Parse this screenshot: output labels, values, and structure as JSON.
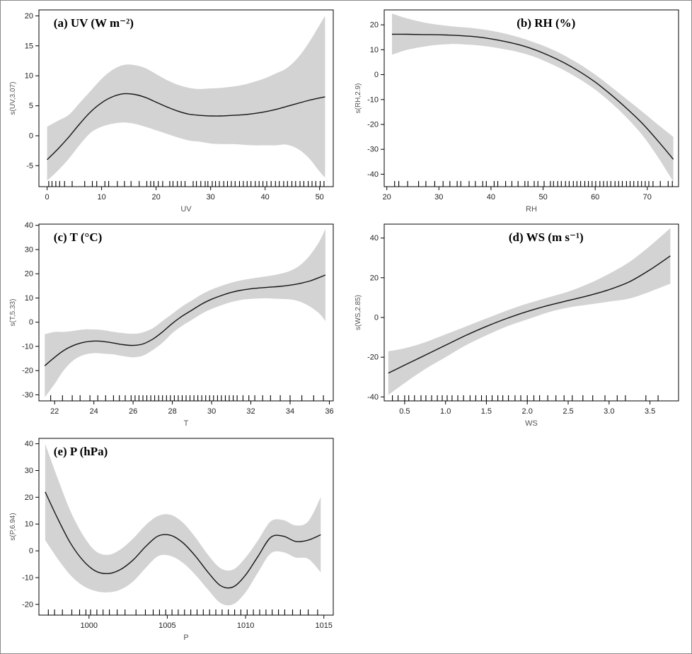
{
  "figure": {
    "background": "#ffffff",
    "border_color": "#8a8a8a",
    "band_color": "#d3d3d3",
    "line_color": "#141414",
    "axis_color": "#000000",
    "tick_label_color": "#222222",
    "axis_label_color": "#555555"
  },
  "chart_data": [
    {
      "id": "a",
      "type": "line",
      "title": "(a)  UV (W m⁻²)",
      "title_align": "left",
      "xlabel": "UV",
      "ylabel": "s(UV,3.07)",
      "xlim": [
        -1.5,
        52.5
      ],
      "ylim": [
        -8.5,
        21
      ],
      "xticks": [
        0,
        10,
        20,
        30,
        40,
        50
      ],
      "xtick_labels": [
        "0",
        "10",
        "20",
        "30",
        "40",
        "50"
      ],
      "yticks": [
        -5,
        0,
        5,
        10,
        15,
        20
      ],
      "ytick_labels": [
        "-5",
        "0",
        "5",
        "10",
        "15",
        "20"
      ],
      "x": [
        0,
        2,
        4,
        6,
        8,
        10,
        12,
        14,
        16,
        18,
        20,
        22,
        24,
        26,
        28,
        30,
        32,
        34,
        36,
        38,
        40,
        42,
        44,
        46,
        48,
        50,
        51
      ],
      "fit": [
        -4,
        -2.2,
        -0.2,
        2,
        4,
        5.5,
        6.5,
        7,
        6.9,
        6.4,
        5.6,
        4.8,
        4.1,
        3.6,
        3.4,
        3.3,
        3.3,
        3.4,
        3.5,
        3.7,
        4,
        4.4,
        4.9,
        5.4,
        5.9,
        6.3,
        6.5
      ],
      "upper": [
        1.5,
        2.5,
        3.5,
        5.5,
        7.5,
        9.5,
        11,
        11.8,
        11.8,
        11.3,
        10.3,
        9.3,
        8.5,
        8,
        7.8,
        7.9,
        8,
        8.2,
        8.5,
        9,
        9.6,
        10.4,
        11.3,
        13,
        15.5,
        18.5,
        20
      ],
      "lower": [
        -7.5,
        -5.8,
        -3.8,
        -1.5,
        0.5,
        1.5,
        2,
        2.2,
        2,
        1.5,
        0.9,
        0.3,
        -0.3,
        -0.8,
        -1,
        -1.3,
        -1.4,
        -1.4,
        -1.5,
        -1.6,
        -1.6,
        -1.6,
        -1.5,
        -2.2,
        -3.7,
        -6,
        -7
      ],
      "rug": [
        0.3,
        0.9,
        1.6,
        2.3,
        3.2,
        4.6,
        6.9,
        8.3,
        9.1,
        10.6,
        11.3,
        12.9,
        14.2,
        15.4,
        16.9,
        18.3,
        19,
        19.6,
        20.4,
        21.2,
        22.5,
        23.1,
        23.9,
        24.6,
        25.3,
        26.8,
        27.4,
        28.2,
        29,
        29.5,
        30.3,
        30.9,
        31.6,
        32.4,
        33.1,
        33.8,
        34.5,
        35.3,
        36,
        36.7,
        37.4,
        38.2,
        38.9,
        39.6,
        40.3,
        41.1,
        41.9,
        42.6,
        43.4,
        44.1,
        44.9,
        45.6,
        46.4,
        47.1,
        47.9,
        48.6,
        49.3,
        50.1,
        50.8
      ]
    },
    {
      "id": "b",
      "type": "line",
      "title": "(b)  RH (%)",
      "title_align": "center",
      "xlabel": "RH",
      "ylabel": "s(RH,2.9)",
      "xlim": [
        19.5,
        76
      ],
      "ylim": [
        -45,
        26
      ],
      "xticks": [
        20,
        30,
        40,
        50,
        60,
        70
      ],
      "xtick_labels": [
        "20",
        "30",
        "40",
        "50",
        "60",
        "70"
      ],
      "yticks": [
        -40,
        -30,
        -20,
        -10,
        0,
        10,
        20
      ],
      "ytick_labels": [
        "-40",
        "-30",
        "-20",
        "-10",
        "0",
        "10",
        "20"
      ],
      "x": [
        21,
        24,
        27,
        30,
        33,
        36,
        39,
        42,
        45,
        48,
        51,
        54,
        57,
        60,
        63,
        66,
        69,
        72,
        75
      ],
      "fit": [
        16.2,
        16.2,
        16.1,
        16,
        15.8,
        15.4,
        14.7,
        13.6,
        12.2,
        10.3,
        7.8,
        4.8,
        1.2,
        -3,
        -8,
        -13.5,
        -19.5,
        -26.5,
        -34
      ],
      "upper": [
        24.5,
        22.5,
        21,
        20,
        19.3,
        18.8,
        18,
        16.8,
        15.2,
        13.2,
        10.8,
        7.8,
        4.2,
        0,
        -4.8,
        -9.8,
        -14.8,
        -20,
        -25
      ],
      "lower": [
        8,
        10,
        11.2,
        12,
        12.3,
        12,
        11.4,
        10.4,
        9.2,
        7.4,
        4.8,
        1.8,
        -1.8,
        -6,
        -11.2,
        -17.2,
        -24.2,
        -33,
        -43
      ],
      "rug": [
        21.5,
        22.3,
        24,
        26.1,
        27.5,
        29.2,
        30.8,
        32.1,
        33.5,
        34.2,
        35.8,
        37,
        38.4,
        39.1,
        40.6,
        41.3,
        42.8,
        44,
        45.2,
        46.5,
        47.1,
        48.3,
        49,
        50.2,
        51.4,
        52,
        52.8,
        53.5,
        54.3,
        55,
        55.8,
        56.5,
        57.2,
        58,
        58.7,
        59.4,
        60.1,
        60.9,
        61.6,
        62.3,
        63,
        63.8,
        64.5,
        65.2,
        66,
        66.7,
        67.4,
        68.2,
        68.9,
        69.6,
        70.3,
        71.1,
        72.5,
        74,
        74.8
      ]
    },
    {
      "id": "c",
      "type": "line",
      "title": "(c)  T (°C)",
      "title_align": "left",
      "xlabel": "T",
      "ylabel": "s(T,5.33)",
      "xlim": [
        21.2,
        36.2
      ],
      "ylim": [
        -32.5,
        40.5
      ],
      "xticks": [
        22,
        24,
        26,
        28,
        30,
        32,
        34,
        36
      ],
      "xtick_labels": [
        "22",
        "24",
        "26",
        "28",
        "30",
        "32",
        "34",
        "36"
      ],
      "yticks": [
        -30,
        -20,
        -10,
        0,
        10,
        20,
        30,
        40
      ],
      "ytick_labels": [
        "-30",
        "-20",
        "-10",
        "0",
        "10",
        "20",
        "30",
        "40"
      ],
      "x": [
        21.5,
        22,
        22.5,
        23,
        23.5,
        24,
        24.5,
        25,
        25.5,
        26,
        26.5,
        27,
        27.5,
        28,
        28.5,
        29,
        29.5,
        30,
        30.5,
        31,
        31.5,
        32,
        32.5,
        33,
        33.5,
        34,
        34.5,
        35,
        35.5,
        35.8
      ],
      "fit": [
        -18,
        -14.5,
        -11.5,
        -9.5,
        -8.3,
        -7.8,
        -8,
        -8.6,
        -9.3,
        -9.6,
        -9,
        -7,
        -4,
        -0.5,
        2.5,
        5,
        7.5,
        9.5,
        11,
        12.3,
        13.2,
        13.8,
        14.2,
        14.5,
        14.8,
        15.3,
        16,
        17,
        18.5,
        19.5
      ],
      "upper": [
        -5,
        -4,
        -4,
        -3.5,
        -3,
        -3,
        -3.3,
        -4,
        -4.5,
        -4.8,
        -4.2,
        -2.5,
        0.5,
        3.5,
        6.5,
        9,
        11.5,
        13.5,
        15,
        16.3,
        17.3,
        18,
        18.6,
        19.2,
        20,
        21.2,
        23.5,
        27.5,
        33.5,
        38.5
      ],
      "lower": [
        -31,
        -25.5,
        -19.5,
        -15.5,
        -13.5,
        -12.8,
        -13,
        -13.3,
        -14,
        -14.5,
        -13.8,
        -11.5,
        -8.5,
        -4.5,
        -1.5,
        1,
        3.5,
        5.5,
        7,
        8.3,
        9.2,
        9.6,
        9.8,
        9.8,
        9.6,
        9.4,
        8.5,
        6.5,
        3.5,
        0.5
      ],
      "rug": [
        21.8,
        22.4,
        22.9,
        23.3,
        23.8,
        24.2,
        24.6,
        25,
        25.3,
        25.6,
        25.9,
        26.1,
        26.3,
        26.5,
        26.7,
        26.9,
        27.1,
        27.3,
        27.5,
        27.7,
        27.9,
        28.1,
        28.3,
        28.5,
        28.7,
        28.9,
        29.1,
        29.3,
        29.5,
        29.7,
        29.9,
        30.1,
        30.3,
        30.5,
        30.7,
        30.9,
        31.1,
        31.3,
        31.6,
        31.9,
        32.2,
        32.6,
        33,
        33.5,
        34,
        34.6,
        35.2,
        35.7
      ]
    },
    {
      "id": "d",
      "type": "line",
      "title": "(d)  WS (m s⁻¹)",
      "title_align": "center",
      "xlabel": "WS",
      "ylabel": "s(WS,2.85)",
      "xlim": [
        0.25,
        3.85
      ],
      "ylim": [
        -42,
        47
      ],
      "xticks": [
        0.5,
        1,
        1.5,
        2,
        2.5,
        3,
        3.5
      ],
      "xtick_labels": [
        "0.5",
        "1.0",
        "1.5",
        "2.0",
        "2.5",
        "3.0",
        "3.5"
      ],
      "yticks": [
        -40,
        -20,
        0,
        20,
        40
      ],
      "ytick_labels": [
        "-40",
        "-20",
        "0",
        "20",
        "40"
      ],
      "x": [
        0.3,
        0.5,
        0.75,
        1,
        1.25,
        1.5,
        1.75,
        2,
        2.25,
        2.5,
        2.75,
        3,
        3.25,
        3.5,
        3.75
      ],
      "fit": [
        -28,
        -24,
        -19,
        -14,
        -9,
        -4.5,
        -0.5,
        3,
        6,
        8.5,
        11,
        14,
        18,
        24,
        31
      ],
      "upper": [
        -17,
        -15.5,
        -12.5,
        -8.5,
        -4.5,
        -0.5,
        3.5,
        7,
        10,
        13,
        17,
        22,
        28,
        36,
        45
      ],
      "lower": [
        -39,
        -33,
        -26,
        -20,
        -14,
        -9,
        -4.5,
        -1,
        2.5,
        5,
        6.5,
        8,
        9.5,
        13,
        17
      ],
      "rug": [
        0.35,
        0.42,
        0.5,
        0.55,
        0.62,
        0.7,
        0.76,
        0.83,
        0.9,
        0.96,
        1.02,
        1.08,
        1.15,
        1.22,
        1.3,
        1.37,
        1.44,
        1.5,
        1.57,
        1.64,
        1.7,
        1.77,
        1.85,
        1.92,
        2,
        2.08,
        2.15,
        2.25,
        2.35,
        2.45,
        2.55,
        2.68,
        2.8,
        2.95,
        3.1,
        3.2,
        3.45,
        3.6
      ]
    },
    {
      "id": "e",
      "type": "line",
      "title": "(e)  P (hPa)",
      "title_align": "left",
      "xlabel": "P",
      "ylabel": "s(P,6.94)",
      "xlim": [
        996.8,
        1015.6
      ],
      "ylim": [
        -24,
        42
      ],
      "xticks": [
        1000,
        1005,
        1010,
        1015
      ],
      "xtick_labels": [
        "1000",
        "1005",
        "1010",
        "1015"
      ],
      "yticks": [
        -20,
        -10,
        0,
        10,
        20,
        30,
        40
      ],
      "ytick_labels": [
        "-20",
        "-10",
        "0",
        "10",
        "20",
        "30",
        "40"
      ],
      "x": [
        997.2,
        998,
        998.8,
        999.6,
        1000.4,
        1001.2,
        1002,
        1002.8,
        1003.6,
        1004.4,
        1005.2,
        1006,
        1006.8,
        1007.6,
        1008.4,
        1009.2,
        1010,
        1010.8,
        1011.6,
        1012.4,
        1013.2,
        1014,
        1014.8
      ],
      "fit": [
        22,
        12,
        3,
        -3.5,
        -7.5,
        -8.5,
        -7,
        -3.5,
        1.5,
        5.5,
        5.8,
        3,
        -2,
        -8,
        -13,
        -13.5,
        -9,
        -2,
        5,
        5.5,
        3.5,
        4,
        6
      ],
      "upper": [
        40,
        27,
        15,
        6,
        0,
        -1.5,
        0.5,
        4.5,
        9.5,
        13,
        13.5,
        10.5,
        5,
        -1.5,
        -6.5,
        -7,
        -2.5,
        4,
        11,
        11.5,
        9.5,
        11,
        20
      ],
      "lower": [
        4,
        -3,
        -9,
        -13,
        -15,
        -15.5,
        -14.5,
        -11.5,
        -6.5,
        -2,
        -1.9,
        -4.5,
        -9,
        -14.5,
        -19.5,
        -20,
        -15.5,
        -8,
        -1,
        -0.5,
        -2.5,
        -3,
        -8
      ],
      "rug": [
        997.4,
        997.8,
        998.3,
        998.9,
        999.4,
        999.8,
        1000.1,
        1000.5,
        1000.9,
        1001.3,
        1001.8,
        1002.3,
        1003,
        1003.6,
        1004.1,
        1004.5,
        1004.9,
        1005.3,
        1005.7,
        1006.1,
        1006.5,
        1006.9,
        1007.3,
        1007.7,
        1008.1,
        1008.5,
        1008.9,
        1009.3,
        1009.7,
        1010.1,
        1010.5,
        1010.9,
        1011.3,
        1011.7,
        1012.1,
        1012.5,
        1013,
        1013.5,
        1014,
        1014.6
      ]
    }
  ]
}
